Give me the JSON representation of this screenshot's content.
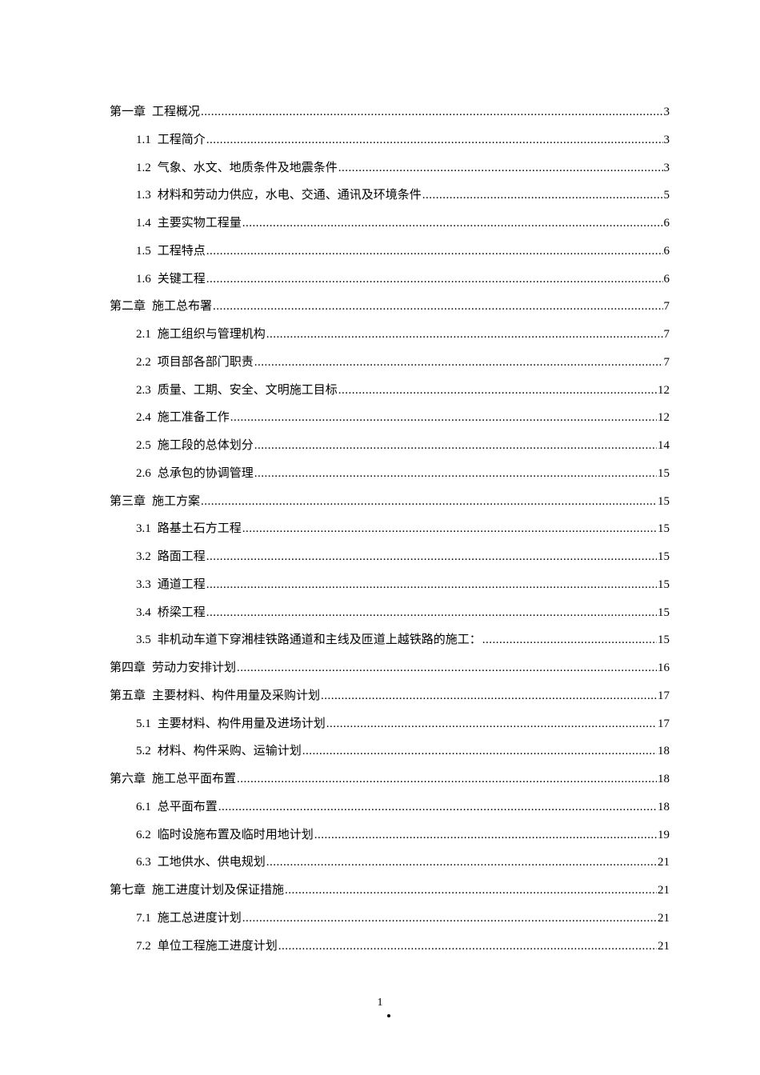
{
  "toc": [
    {
      "level": 1,
      "num": "第一章",
      "title": "工程概况",
      "page": "3"
    },
    {
      "level": 2,
      "num": "1.1",
      "title": "工程简介",
      "page": "3"
    },
    {
      "level": 2,
      "num": "1.2",
      "title": "气象、水文、地质条件及地震条件",
      "page": "3"
    },
    {
      "level": 2,
      "num": "1.3",
      "title": "材料和劳动力供应，水电、交通、通讯及环境条件",
      "page": "5"
    },
    {
      "level": 2,
      "num": "1.4",
      "title": "主要实物工程量",
      "page": "6"
    },
    {
      "level": 2,
      "num": "1.5",
      "title": "工程特点",
      "page": "6"
    },
    {
      "level": 2,
      "num": "1.6",
      "title": "关键工程",
      "page": "6"
    },
    {
      "level": 1,
      "num": "第二章",
      "title": "施工总布署",
      "page": "7"
    },
    {
      "level": 2,
      "num": "2.1",
      "title": "施工组织与管理机构",
      "page": "7"
    },
    {
      "level": 2,
      "num": "2.2",
      "title": "项目部各部门职责",
      "page": "7"
    },
    {
      "level": 2,
      "num": "2.3",
      "title": "质量、工期、安全、文明施工目标",
      "page": "12"
    },
    {
      "level": 2,
      "num": "2.4",
      "title": "施工准备工作",
      "page": "12"
    },
    {
      "level": 2,
      "num": "2.5",
      "title": "施工段的总体划分",
      "page": "14"
    },
    {
      "level": 2,
      "num": "2.6",
      "title": "总承包的协调管理",
      "page": "15"
    },
    {
      "level": 1,
      "num": "第三章",
      "title": "施工方案",
      "page": "15"
    },
    {
      "level": 2,
      "num": "3.1",
      "title": "路基土石方工程",
      "page": "15"
    },
    {
      "level": 2,
      "num": "3.2",
      "title": "路面工程",
      "page": "15"
    },
    {
      "level": 2,
      "num": "3.3",
      "title": "通道工程",
      "page": "15"
    },
    {
      "level": 2,
      "num": "3.4",
      "title": "桥梁工程",
      "page": "15"
    },
    {
      "level": 2,
      "num": "3.5",
      "title": "非机动车道下穿湘桂铁路通道和主线及匝道上越铁路的施工：",
      "page": "15"
    },
    {
      "level": 1,
      "num": "第四章",
      "title": "劳动力安排计划",
      "page": "16"
    },
    {
      "level": 1,
      "num": "第五章",
      "title": "主要材料、构件用量及采购计划",
      "page": "17"
    },
    {
      "level": 2,
      "num": "5.1",
      "title": "主要材料、构件用量及进场计划",
      "page": "17"
    },
    {
      "level": 2,
      "num": "5.2",
      "title": "材料、构件采购、运输计划",
      "page": "18"
    },
    {
      "level": 1,
      "num": "第六章",
      "title": "施工总平面布置",
      "page": "18"
    },
    {
      "level": 2,
      "num": "6.1",
      "title": "总平面布置",
      "page": "18"
    },
    {
      "level": 2,
      "num": "6.2",
      "title": "临时设施布置及临时用地计划",
      "page": "19"
    },
    {
      "level": 2,
      "num": "6.3",
      "title": "工地供水、供电规划",
      "page": "21"
    },
    {
      "level": 1,
      "num": "第七章",
      "title": "施工进度计划及保证措施",
      "page": "21"
    },
    {
      "level": 2,
      "num": "7.1",
      "title": " 施工总进度计划",
      "page": "21"
    },
    {
      "level": 2,
      "num": "7.2",
      "title": "单位工程施工进度计划",
      "page": "21"
    }
  ],
  "footer": {
    "page_number": "1"
  }
}
